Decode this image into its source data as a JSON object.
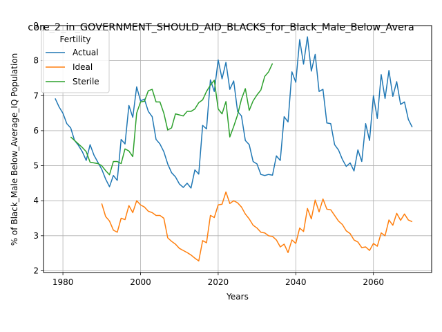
{
  "chart_data": {
    "type": "line",
    "title": "core_2_in_GOVERNMENT_SHOULD_AID_BLACKS_for_Black_Male_Below_Avera",
    "xlabel": "Years",
    "ylabel": "% of Black_Male Below_Average_IQ Population",
    "xlim": [
      1975,
      2075
    ],
    "ylim": [
      1.95,
      9.0
    ],
    "x_ticks": [
      1980,
      2000,
      2020,
      2040,
      2060
    ],
    "y_ticks": [
      2,
      3,
      4,
      5,
      6,
      7,
      8,
      9
    ],
    "grid": true,
    "legend": {
      "title": "Fertility",
      "placement": "top-left"
    },
    "series": [
      {
        "name": "Actual",
        "color": "#1f77b4",
        "x": [
          1978,
          1979,
          1980,
          1981,
          1982,
          1983,
          1984,
          1985,
          1986,
          1987,
          1988,
          1989,
          1990,
          1991,
          1992,
          1993,
          1994,
          1995,
          1996,
          1997,
          1998,
          1999,
          2000,
          2001,
          2002,
          2003,
          2004,
          2005,
          2006,
          2007,
          2008,
          2009,
          2010,
          2011,
          2012,
          2013,
          2014,
          2015,
          2016,
          2017,
          2018,
          2019,
          2020,
          2021,
          2022,
          2023,
          2024,
          2025,
          2026,
          2027,
          2028,
          2029,
          2030,
          2031,
          2032,
          2033,
          2034,
          2035,
          2036,
          2037,
          2038,
          2039,
          2040,
          2041,
          2042,
          2043,
          2044,
          2045,
          2046,
          2047,
          2048,
          2049,
          2050,
          2051,
          2052,
          2053,
          2054,
          2055,
          2056,
          2057,
          2058,
          2059,
          2060,
          2061,
          2062,
          2063,
          2064,
          2065,
          2066,
          2067,
          2068,
          2069,
          2070
        ],
        "values": [
          6.92,
          6.68,
          6.5,
          6.2,
          6.08,
          5.72,
          5.58,
          5.4,
          5.15,
          5.6,
          5.3,
          5.1,
          4.9,
          4.62,
          4.4,
          4.72,
          4.58,
          5.75,
          5.62,
          6.72,
          6.38,
          7.25,
          6.85,
          6.9,
          6.55,
          6.4,
          5.75,
          5.62,
          5.4,
          5.05,
          4.8,
          4.68,
          4.48,
          4.38,
          4.5,
          4.36,
          4.88,
          4.76,
          6.15,
          6.05,
          7.45,
          7.12,
          8.02,
          7.48,
          7.95,
          7.18,
          7.42,
          6.55,
          6.42,
          5.72,
          5.6,
          5.12,
          5.05,
          4.75,
          4.72,
          4.75,
          4.73,
          5.28,
          5.15,
          6.4,
          6.25,
          7.68,
          7.38,
          8.6,
          7.9,
          8.68,
          7.7,
          8.18,
          7.12,
          7.18,
          6.22,
          6.2,
          5.6,
          5.45,
          5.18,
          4.98,
          5.08,
          4.85,
          5.45,
          5.12,
          6.2,
          5.72,
          7.0,
          6.35,
          7.6,
          6.92,
          7.72,
          6.98,
          7.4,
          6.75,
          6.82,
          6.32,
          6.1
        ]
      },
      {
        "name": "Ideal",
        "color": "#ff7f0e",
        "x": [
          1990,
          1991,
          1992,
          1993,
          1994,
          1995,
          1996,
          1997,
          1998,
          1999,
          2000,
          2001,
          2002,
          2003,
          2004,
          2005,
          2006,
          2007,
          2008,
          2009,
          2010,
          2011,
          2012,
          2013,
          2014,
          2015,
          2016,
          2017,
          2018,
          2019,
          2020,
          2021,
          2022,
          2023,
          2024,
          2025,
          2026,
          2027,
          2028,
          2029,
          2030,
          2031,
          2032,
          2033,
          2034,
          2035,
          2036,
          2037,
          2038,
          2039,
          2040,
          2041,
          2042,
          2043,
          2044,
          2045,
          2046,
          2047,
          2048,
          2049,
          2050,
          2051,
          2052,
          2053,
          2054,
          2055,
          2056,
          2057,
          2058,
          2059,
          2060,
          2061,
          2062,
          2063,
          2064,
          2065,
          2066,
          2067,
          2068,
          2069,
          2070
        ],
        "values": [
          3.92,
          3.55,
          3.42,
          3.16,
          3.1,
          3.5,
          3.46,
          3.86,
          3.66,
          4.0,
          3.88,
          3.82,
          3.7,
          3.66,
          3.58,
          3.58,
          3.5,
          2.94,
          2.84,
          2.76,
          2.64,
          2.58,
          2.52,
          2.45,
          2.36,
          2.28,
          2.86,
          2.8,
          3.58,
          3.52,
          3.88,
          3.9,
          4.25,
          3.92,
          4.0,
          3.94,
          3.82,
          3.62,
          3.48,
          3.3,
          3.22,
          3.1,
          3.08,
          3.0,
          2.98,
          2.88,
          2.68,
          2.76,
          2.52,
          2.88,
          2.78,
          3.22,
          3.12,
          3.78,
          3.48,
          4.02,
          3.68,
          4.05,
          3.76,
          3.74,
          3.58,
          3.42,
          3.32,
          3.14,
          3.06,
          2.88,
          2.82,
          2.66,
          2.68,
          2.58,
          2.78,
          2.7,
          3.08,
          3.0,
          3.45,
          3.3,
          3.64,
          3.44,
          3.62,
          3.45,
          3.4
        ]
      },
      {
        "name": "Sterile",
        "color": "#2ca02c",
        "x": [
          1982,
          1983,
          1984,
          1985,
          1986,
          1987,
          1988,
          1989,
          1990,
          1991,
          1992,
          1993,
          1994,
          1995,
          1996,
          1997,
          1998,
          1999,
          2000,
          2001,
          2002,
          2003,
          2004,
          2005,
          2006,
          2007,
          2008,
          2009,
          2010,
          2011,
          2012,
          2013,
          2014,
          2015,
          2016,
          2017,
          2018,
          2019,
          2020,
          2021,
          2022,
          2023,
          2024,
          2025,
          2026,
          2027,
          2028,
          2029,
          2030,
          2031,
          2032,
          2033,
          2034
        ],
        "values": [
          5.82,
          5.72,
          5.62,
          5.52,
          5.4,
          5.1,
          5.08,
          5.06,
          5.0,
          4.86,
          4.74,
          5.12,
          5.12,
          5.06,
          5.48,
          5.42,
          5.26,
          6.5,
          6.82,
          6.84,
          7.14,
          7.18,
          6.82,
          6.82,
          6.5,
          6.02,
          6.08,
          6.48,
          6.45,
          6.42,
          6.55,
          6.55,
          6.62,
          6.8,
          6.88,
          7.12,
          7.3,
          7.44,
          6.62,
          6.48,
          6.83,
          5.82,
          6.12,
          6.45,
          6.9,
          7.2,
          6.58,
          6.85,
          7.02,
          7.16,
          7.55,
          7.68,
          7.92
        ]
      }
    ]
  }
}
